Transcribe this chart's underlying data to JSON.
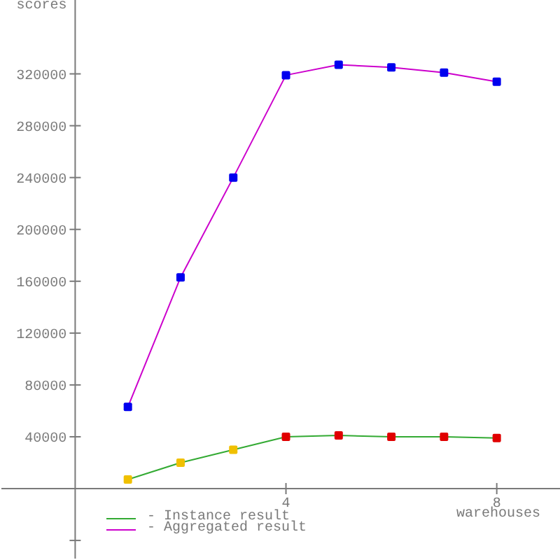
{
  "chart_data": {
    "type": "line",
    "ylabel": "scores",
    "xlabel": "warehouses",
    "x": [
      1,
      2,
      3,
      4,
      5,
      6,
      7,
      8
    ],
    "series": [
      {
        "name": "- Instance result",
        "color": "#33aa33",
        "colors": [
          "#f0c000",
          "#f0c000",
          "#f0c000",
          "#e00000",
          "#e00000",
          "#e00000",
          "#e00000",
          "#e00000"
        ],
        "values": [
          7000,
          20000,
          30000,
          40000,
          41000,
          40000,
          40000,
          39000
        ]
      },
      {
        "name": "- Aggregated result",
        "color": "#cc00cc",
        "colors": [
          "#0000ee",
          "#0000ee",
          "#0000ee",
          "#0000ee",
          "#0000ee",
          "#0000ee",
          "#0000ee",
          "#0000ee"
        ],
        "values": [
          63000,
          163000,
          240000,
          319000,
          327000,
          325000,
          321000,
          314000
        ]
      }
    ],
    "xlim": [
      -1.4,
      9.2
    ],
    "xticks": [
      4,
      8
    ],
    "ylim": [
      -54000,
      377000
    ],
    "yticks": [
      {
        "value": -40000,
        "label": null
      },
      40000,
      80000,
      120000,
      160000,
      200000,
      240000,
      280000,
      320000
    ],
    "legend": "bottom left",
    "marker": "square",
    "line_style": "solid"
  }
}
